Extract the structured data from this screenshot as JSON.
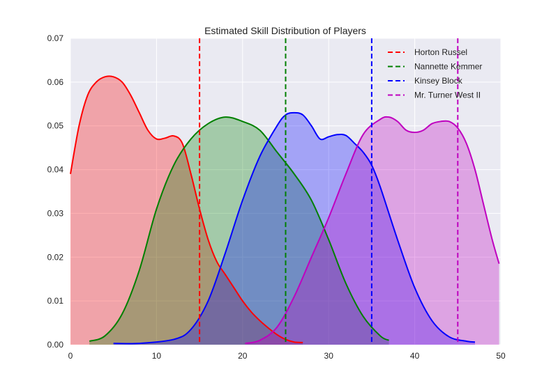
{
  "chart_data": {
    "type": "area",
    "title": "Estimated Skill Distribution of Players",
    "xlabel": "",
    "ylabel": "",
    "xlim": [
      0,
      50
    ],
    "ylim": [
      0,
      0.07
    ],
    "xticks": [
      "0",
      "10",
      "20",
      "30",
      "40",
      "50"
    ],
    "yticks": [
      "0.00",
      "0.01",
      "0.02",
      "0.03",
      "0.04",
      "0.05",
      "0.06",
      "0.07"
    ],
    "grid": true,
    "legend_position": "top-right",
    "series": [
      {
        "name": "Horton Russel",
        "color": "#ff0000",
        "fill": "#f0a8a8",
        "mean": 15,
        "x": [
          0,
          1,
          2,
          3,
          4,
          5,
          6,
          7,
          8,
          9,
          10,
          11,
          12,
          13,
          14,
          15,
          16,
          17,
          18,
          19,
          20,
          21,
          22,
          23,
          24,
          25,
          26,
          27
        ],
        "y": [
          0.039,
          0.05,
          0.057,
          0.06,
          0.0612,
          0.0612,
          0.06,
          0.057,
          0.053,
          0.049,
          0.047,
          0.0472,
          0.0477,
          0.046,
          0.039,
          0.031,
          0.024,
          0.019,
          0.016,
          0.013,
          0.01,
          0.0075,
          0.0055,
          0.0038,
          0.0023,
          0.0012,
          0.0006,
          0.0005
        ]
      },
      {
        "name": "Nannette Kemmer",
        "color": "#008000",
        "fill": "#a8d0a8",
        "mean": 25,
        "x": [
          2.2,
          4,
          6,
          8,
          10,
          12,
          14,
          16,
          18,
          20,
          22,
          24,
          26,
          28,
          30,
          32,
          34,
          36,
          37
        ],
        "y": [
          0.0008,
          0.002,
          0.007,
          0.017,
          0.031,
          0.041,
          0.047,
          0.0505,
          0.052,
          0.051,
          0.049,
          0.044,
          0.039,
          0.033,
          0.024,
          0.014,
          0.0065,
          0.002,
          0.001
        ]
      },
      {
        "name": "Kinsey Block",
        "color": "#0000ff",
        "fill": "#a8a8f0",
        "mean": 35,
        "x": [
          5,
          8,
          12,
          14,
          16,
          18,
          20,
          22,
          24,
          25,
          26,
          27,
          28,
          29,
          30,
          31,
          32,
          33,
          34,
          35,
          36,
          38,
          40,
          42,
          44,
          46,
          47
        ],
        "y": [
          0.0003,
          0.0003,
          0.0012,
          0.0035,
          0.01,
          0.021,
          0.033,
          0.043,
          0.05,
          0.0525,
          0.053,
          0.0525,
          0.05,
          0.047,
          0.0475,
          0.048,
          0.0478,
          0.046,
          0.044,
          0.041,
          0.036,
          0.024,
          0.013,
          0.0055,
          0.0018,
          0.0008,
          0.0006
        ]
      },
      {
        "name": "Mr. Turner West II",
        "color": "#bf00bf",
        "fill": "#e0a8e0",
        "mean": 45,
        "x": [
          20.3,
          22,
          24,
          26,
          28,
          30,
          32,
          34,
          36,
          37,
          38,
          39,
          40,
          41,
          42,
          43,
          44,
          45,
          46,
          47,
          48,
          49,
          49.8
        ],
        "y": [
          0.0003,
          0.001,
          0.004,
          0.011,
          0.02,
          0.029,
          0.039,
          0.048,
          0.0515,
          0.052,
          0.051,
          0.049,
          0.0485,
          0.049,
          0.0505,
          0.051,
          0.051,
          0.0495,
          0.046,
          0.04,
          0.032,
          0.024,
          0.0185
        ]
      }
    ]
  }
}
